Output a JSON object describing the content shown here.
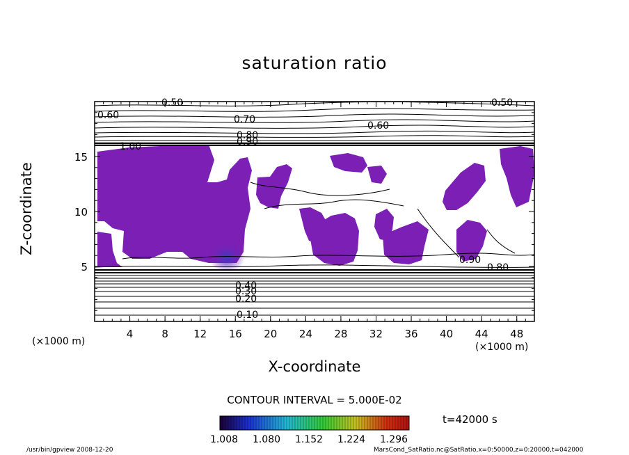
{
  "chart_data": {
    "type": "contour",
    "title": "saturation ratio",
    "xlabel": "X-coordinate",
    "ylabel": "Z-coordinate",
    "x_unit": "(×1000 m)",
    "y_unit": "(×1000 m)",
    "xlim": [
      0,
      50
    ],
    "ylim": [
      0,
      20
    ],
    "x_ticks": [
      "4",
      "8",
      "12",
      "16",
      "20",
      "24",
      "28",
      "32",
      "36",
      "40",
      "44",
      "48"
    ],
    "y_ticks": [
      "5",
      "10",
      "15"
    ],
    "contour_interval_text": "CONTOUR INTERVAL = 5.000E-02",
    "contour_labels": [
      "0.50",
      "0.60",
      "0.70",
      "0.80",
      "0.90",
      "1.00",
      "0.10",
      "0.20",
      "0.30",
      "0.40"
    ],
    "shade_color": "#7b1fb5",
    "colorbar": {
      "ticks": [
        "1.008",
        "1.080",
        "1.152",
        "1.224",
        "1.296"
      ]
    },
    "time_text": "t=42000 s"
  },
  "footer": {
    "left": "/usr/bin/gpview   2008-12-20",
    "right": "MarsCond_SatRatio.nc@SatRatio,x=0:50000,z=0:20000,t=042000"
  }
}
